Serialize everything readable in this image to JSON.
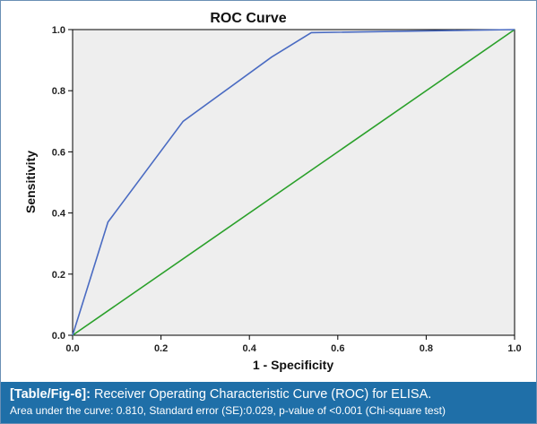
{
  "chart_data": {
    "type": "line",
    "title": "ROC Curve",
    "xlabel": "1 - Specificity",
    "ylabel": "Sensitivity",
    "xlim": [
      0,
      1
    ],
    "ylim": [
      0,
      1
    ],
    "x_ticks": [
      "0.0",
      "0.2",
      "0.4",
      "0.6",
      "0.8",
      "1.0"
    ],
    "y_ticks": [
      "0.0",
      "0.2",
      "0.4",
      "0.6",
      "0.8",
      "1.0"
    ],
    "grid": false,
    "plot_background": "#eeeeee",
    "series": [
      {
        "color": "#4a6bc2",
        "points": [
          [
            0,
            0
          ],
          [
            0.08,
            0.37
          ],
          [
            0.25,
            0.7
          ],
          [
            0.45,
            0.91
          ],
          [
            0.54,
            0.99
          ],
          [
            1.0,
            1.0
          ]
        ]
      },
      {
        "color": "#2aa02a",
        "points": [
          [
            0,
            0
          ],
          [
            1.0,
            1.0
          ]
        ]
      }
    ]
  },
  "caption": {
    "label": "[Table/Fig-6]:",
    "text": "Receiver Operating Characteristic Curve (ROC) for ELISA.",
    "detail": "Area under the curve: 0.810, Standard error (SE):0.029, p-value of <0.001 (Chi-square test)",
    "background_color": "#1f6fa8"
  }
}
